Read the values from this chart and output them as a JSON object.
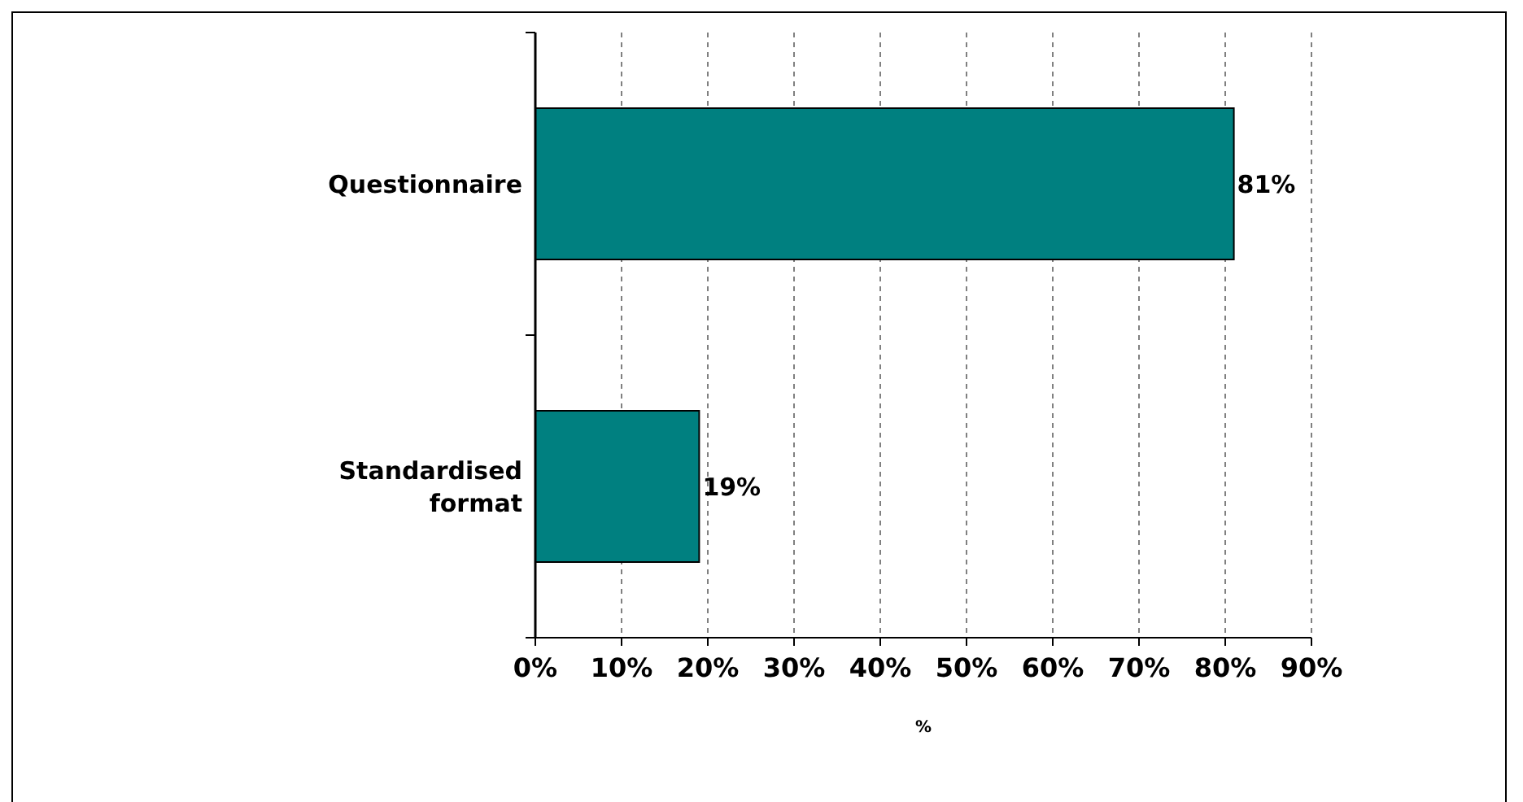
{
  "chart_data": {
    "type": "bar",
    "orientation": "horizontal",
    "xlabel": "%",
    "categories": [
      "Questionnaire",
      "Standardised format"
    ],
    "values": [
      81,
      19
    ],
    "color": "#008080",
    "value_labels": [
      "81%",
      "19%"
    ],
    "xlim": [
      0,
      90
    ],
    "xticks": [
      {
        "value": 0,
        "label": "0%"
      },
      {
        "value": 10,
        "label": "10%"
      },
      {
        "value": 20,
        "label": "20%"
      },
      {
        "value": 30,
        "label": "30%"
      },
      {
        "value": 40,
        "label": "40%"
      },
      {
        "value": 50,
        "label": "50%"
      },
      {
        "value": 60,
        "label": "60%"
      },
      {
        "value": 70,
        "label": "70%"
      },
      {
        "value": 80,
        "label": "80%"
      },
      {
        "value": 90,
        "label": "90%"
      }
    ],
    "grid": "x"
  }
}
